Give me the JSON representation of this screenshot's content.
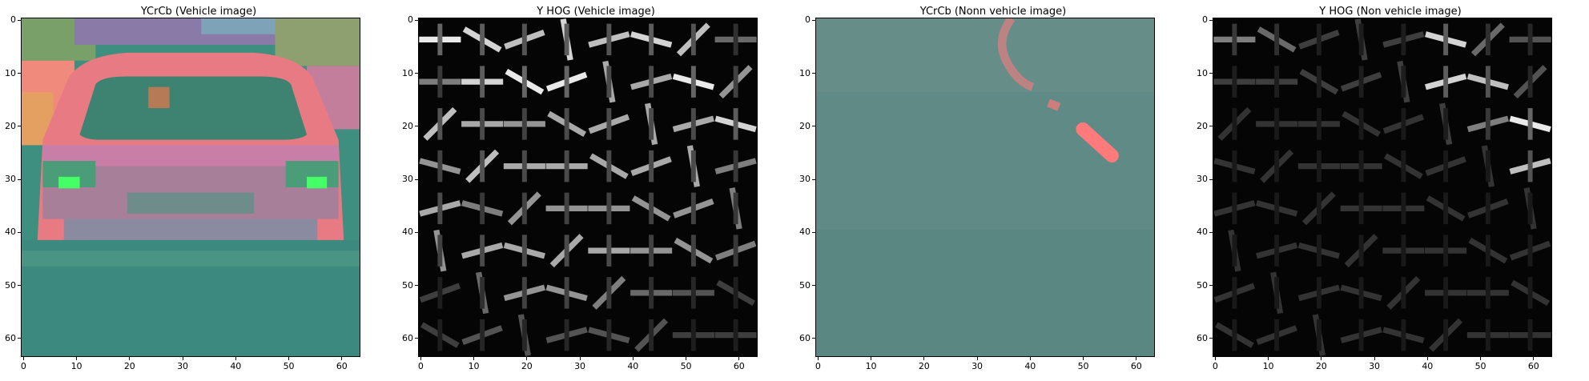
{
  "panels": [
    {
      "title": "YCrCb (Vehicle image)",
      "kind": "vehicle-ycrcb"
    },
    {
      "title": "Y HOG (Vehicle image)",
      "kind": "vehicle-hog"
    },
    {
      "title": "YCrCb (Nonn vehicle image)",
      "kind": "road-ycrcb"
    },
    {
      "title": "Y HOG (Non vehicle image)",
      "kind": "road-hog"
    }
  ],
  "axis": {
    "x_ticks": [
      "0",
      "10",
      "20",
      "30",
      "40",
      "50",
      "60"
    ],
    "y_ticks": [
      "0",
      "10",
      "20",
      "30",
      "40",
      "50",
      "60"
    ],
    "x_range": [
      -0.5,
      63.5
    ],
    "y_range": [
      -0.5,
      63.5
    ]
  },
  "colors": {
    "ycrcb_teal": "#3f8f80",
    "ycrcb_pink": "#f07a7a",
    "ycrcb_green": "#44ff66",
    "road_teal": "#5f8a86",
    "road_pink": "#ff7b7b",
    "hog_bg": "#050505",
    "hog_stroke": "#e8e8e8"
  },
  "hog": {
    "vehicle": [
      [
        0.9,
        0.8,
        0.7,
        0.8,
        0.7,
        0.8,
        0.7,
        0.3
      ],
      [
        0.4,
        0.8,
        0.9,
        0.9,
        0.6,
        0.6,
        0.9,
        0.5
      ],
      [
        0.7,
        0.6,
        0.5,
        0.6,
        0.6,
        0.6,
        0.6,
        0.8
      ],
      [
        0.5,
        0.7,
        0.6,
        0.6,
        0.6,
        0.6,
        0.6,
        0.4
      ],
      [
        0.6,
        0.4,
        0.5,
        0.5,
        0.5,
        0.5,
        0.5,
        0.4
      ],
      [
        0.5,
        0.6,
        0.6,
        0.6,
        0.6,
        0.5,
        0.5,
        0.4
      ],
      [
        0.1,
        0.3,
        0.5,
        0.5,
        0.4,
        0.3,
        0.2,
        0.1
      ],
      [
        0.1,
        0.2,
        0.2,
        0.2,
        0.2,
        0.2,
        0.1,
        0.1
      ]
    ],
    "road": [
      [
        0.4,
        0.3,
        0.1,
        0.1,
        0.1,
        0.8,
        0.3,
        0.2
      ],
      [
        0.1,
        0.1,
        0.1,
        0.1,
        0.1,
        0.8,
        0.7,
        0.2
      ],
      [
        0.05,
        0.05,
        0.05,
        0.05,
        0.05,
        0.1,
        0.4,
        0.9
      ],
      [
        0.05,
        0.05,
        0.05,
        0.05,
        0.05,
        0.05,
        0.05,
        0.7
      ],
      [
        0.05,
        0.05,
        0.05,
        0.05,
        0.05,
        0.05,
        0.05,
        0.05
      ],
      [
        0.05,
        0.05,
        0.05,
        0.05,
        0.05,
        0.05,
        0.05,
        0.05
      ],
      [
        0.05,
        0.05,
        0.05,
        0.05,
        0.05,
        0.05,
        0.05,
        0.05
      ],
      [
        0.05,
        0.05,
        0.05,
        0.05,
        0.05,
        0.05,
        0.05,
        0.05
      ]
    ]
  }
}
